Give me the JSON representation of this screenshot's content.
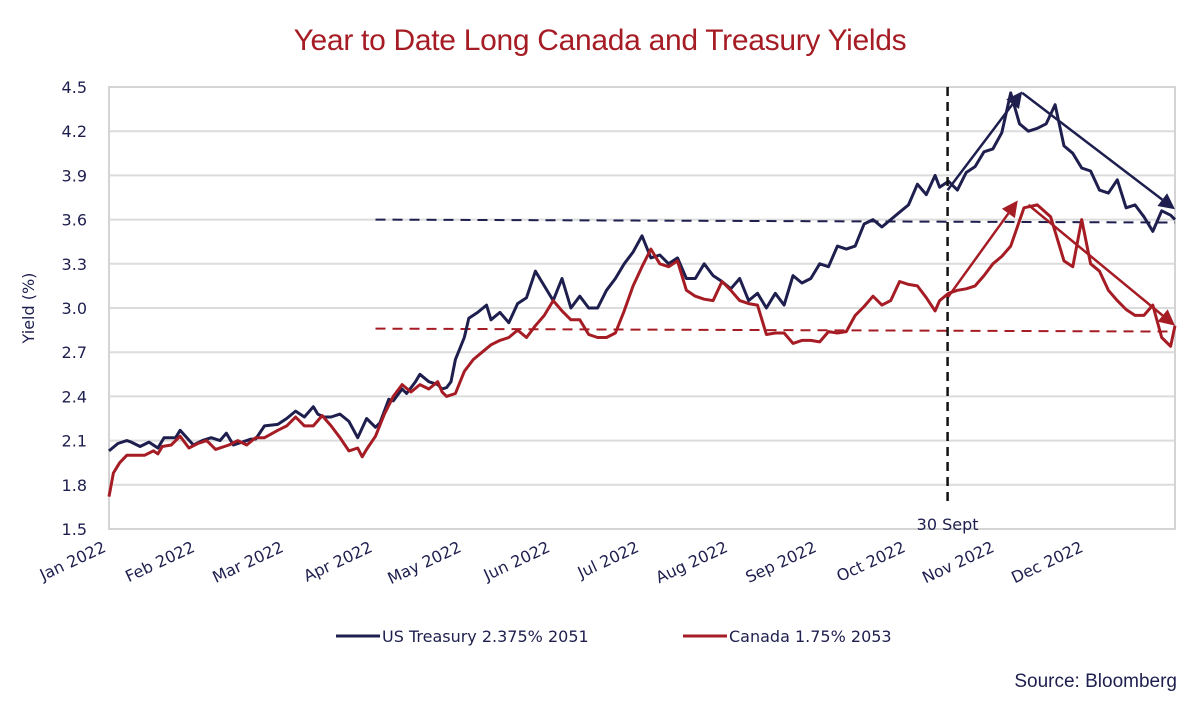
{
  "chart_data": {
    "type": "line",
    "title": "Year to Date Long Canada and Treasury Yields",
    "xlabel": "",
    "ylabel": "Yield (%)",
    "ylim": [
      1.5,
      4.5
    ],
    "yticks": [
      "1.5",
      "1.8",
      "2.1",
      "2.4",
      "2.7",
      "3.0",
      "3.3",
      "3.6",
      "3.9",
      "4.2",
      "4.5"
    ],
    "yticks_values": [
      1.5,
      1.8,
      2.1,
      2.4,
      2.7,
      3.0,
      3.3,
      3.6,
      3.9,
      4.2,
      4.5
    ],
    "x_unit": "months since Jan 2022",
    "xlim": [
      0,
      12
    ],
    "categories": [
      "Jan 2022",
      "Feb 2022",
      "Mar 2022",
      "Apr 2022",
      "May 2022",
      "Jun 2022",
      "Jul 2022",
      "Aug 2022",
      "Sep 2022",
      "Oct 2022",
      "Nov 2022",
      "Dec 2022"
    ],
    "grid": true,
    "legend_position": "bottom",
    "series": [
      {
        "name": "US Treasury 2.375% 2051",
        "color": "#1e1f4e",
        "x": [
          0,
          0.1,
          0.2,
          0.25,
          0.35,
          0.45,
          0.55,
          0.62,
          0.68,
          0.75,
          0.8,
          0.95,
          1.05,
          1.15,
          1.25,
          1.32,
          1.4,
          1.5,
          1.6,
          1.65,
          1.75,
          1.9,
          2.0,
          2.1,
          2.2,
          2.3,
          2.35,
          2.42,
          2.5,
          2.6,
          2.7,
          2.8,
          2.9,
          3.0,
          3.05,
          3.15,
          3.2,
          3.3,
          3.35,
          3.45,
          3.5,
          3.6,
          3.7,
          3.75,
          3.8,
          3.85,
          3.9,
          4.0,
          4.05,
          4.15,
          4.25,
          4.3,
          4.4,
          4.5,
          4.6,
          4.7,
          4.8,
          4.9,
          5.0,
          5.1,
          5.2,
          5.3,
          5.4,
          5.5,
          5.6,
          5.7,
          5.8,
          5.9,
          6.0,
          6.1,
          6.2,
          6.3,
          6.4,
          6.5,
          6.6,
          6.7,
          6.8,
          6.9,
          7.0,
          7.1,
          7.2,
          7.3,
          7.4,
          7.5,
          7.6,
          7.7,
          7.8,
          7.9,
          8.0,
          8.1,
          8.2,
          8.3,
          8.4,
          8.5,
          8.6,
          8.7,
          8.8,
          8.9,
          9.0,
          9.1,
          9.2,
          9.3,
          9.35,
          9.45,
          9.55,
          9.65,
          9.75,
          9.85,
          9.95,
          10.05,
          10.15,
          10.25,
          10.35,
          10.45,
          10.55,
          10.65,
          10.75,
          10.85,
          10.95,
          11.05,
          11.15,
          11.25,
          11.35,
          11.45,
          11.55,
          11.65,
          11.75,
          11.85,
          11.95,
          12.0
        ],
        "values": [
          2.03,
          2.08,
          2.1,
          2.09,
          2.06,
          2.09,
          2.05,
          2.12,
          2.12,
          2.12,
          2.17,
          2.07,
          2.1,
          2.12,
          2.1,
          2.15,
          2.07,
          2.09,
          2.11,
          2.11,
          2.2,
          2.21,
          2.25,
          2.3,
          2.26,
          2.33,
          2.28,
          2.26,
          2.26,
          2.28,
          2.23,
          2.12,
          2.25,
          2.19,
          2.22,
          2.38,
          2.37,
          2.45,
          2.42,
          2.5,
          2.55,
          2.5,
          2.48,
          2.45,
          2.46,
          2.5,
          2.65,
          2.8,
          2.93,
          2.97,
          3.02,
          2.92,
          2.97,
          2.9,
          3.03,
          3.07,
          3.25,
          3.15,
          3.05,
          3.2,
          3.0,
          3.08,
          3.0,
          3.0,
          3.12,
          3.2,
          3.3,
          3.38,
          3.49,
          3.34,
          3.36,
          3.3,
          3.34,
          3.2,
          3.2,
          3.3,
          3.22,
          3.18,
          3.13,
          3.2,
          3.05,
          3.1,
          3.0,
          3.1,
          3.02,
          3.22,
          3.17,
          3.2,
          3.3,
          3.28,
          3.42,
          3.4,
          3.42,
          3.57,
          3.6,
          3.55,
          3.6,
          3.65,
          3.7,
          3.84,
          3.77,
          3.9,
          3.82,
          3.86,
          3.8,
          3.92,
          3.96,
          4.06,
          4.08,
          4.19,
          4.46,
          4.25,
          4.2,
          4.22,
          4.25,
          4.38,
          4.1,
          4.05,
          3.95,
          3.93,
          3.8,
          3.78,
          3.87,
          3.68,
          3.7,
          3.62,
          3.52,
          3.66,
          3.63,
          3.6
        ]
      },
      {
        "name": "Canada 1.75% 2053",
        "color": "#a61c24",
        "x": [
          0,
          0.05,
          0.12,
          0.2,
          0.3,
          0.4,
          0.5,
          0.55,
          0.6,
          0.7,
          0.8,
          0.9,
          1.0,
          1.1,
          1.2,
          1.35,
          1.45,
          1.55,
          1.65,
          1.75,
          1.9,
          2.0,
          2.1,
          2.2,
          2.3,
          2.4,
          2.5,
          2.6,
          2.7,
          2.8,
          2.85,
          2.9,
          3.0,
          3.1,
          3.2,
          3.3,
          3.4,
          3.5,
          3.6,
          3.7,
          3.75,
          3.8,
          3.9,
          4.0,
          4.1,
          4.2,
          4.3,
          4.4,
          4.5,
          4.6,
          4.7,
          4.8,
          4.9,
          5.0,
          5.1,
          5.2,
          5.3,
          5.4,
          5.5,
          5.6,
          5.7,
          5.8,
          5.9,
          6.0,
          6.1,
          6.2,
          6.3,
          6.4,
          6.5,
          6.6,
          6.7,
          6.8,
          6.9,
          7.0,
          7.1,
          7.2,
          7.3,
          7.4,
          7.5,
          7.6,
          7.7,
          7.8,
          7.9,
          8.0,
          8.1,
          8.2,
          8.3,
          8.4,
          8.5,
          8.6,
          8.7,
          8.8,
          8.9,
          9.0,
          9.1,
          9.2,
          9.3,
          9.35,
          9.45,
          9.55,
          9.65,
          9.75,
          9.85,
          9.95,
          10.05,
          10.15,
          10.3,
          10.45,
          10.6,
          10.75,
          10.85,
          10.95,
          11.05,
          11.15,
          11.25,
          11.35,
          11.45,
          11.55,
          11.65,
          11.75,
          11.85,
          11.95,
          12.0
        ],
        "values": [
          1.72,
          1.88,
          1.95,
          2.0,
          2.0,
          2.0,
          2.03,
          2.01,
          2.06,
          2.07,
          2.13,
          2.05,
          2.08,
          2.1,
          2.04,
          2.07,
          2.1,
          2.07,
          2.12,
          2.12,
          2.17,
          2.2,
          2.26,
          2.2,
          2.2,
          2.27,
          2.2,
          2.12,
          2.03,
          2.05,
          1.99,
          2.04,
          2.13,
          2.28,
          2.4,
          2.48,
          2.43,
          2.48,
          2.45,
          2.5,
          2.43,
          2.4,
          2.42,
          2.57,
          2.65,
          2.7,
          2.75,
          2.78,
          2.8,
          2.85,
          2.8,
          2.88,
          2.95,
          3.05,
          2.98,
          2.92,
          2.92,
          2.82,
          2.8,
          2.8,
          2.83,
          2.98,
          3.15,
          3.28,
          3.4,
          3.3,
          3.28,
          3.32,
          3.12,
          3.08,
          3.06,
          3.05,
          3.18,
          3.12,
          3.05,
          3.03,
          3.02,
          2.82,
          2.83,
          2.83,
          2.76,
          2.78,
          2.78,
          2.77,
          2.84,
          2.83,
          2.84,
          2.95,
          3.01,
          3.08,
          3.02,
          3.05,
          3.18,
          3.16,
          3.15,
          3.07,
          2.98,
          3.05,
          3.1,
          3.12,
          3.13,
          3.15,
          3.22,
          3.3,
          3.35,
          3.42,
          3.68,
          3.7,
          3.62,
          3.32,
          3.28,
          3.6,
          3.3,
          3.25,
          3.12,
          3.05,
          2.99,
          2.95,
          2.95,
          3.02,
          2.8,
          2.74,
          2.88
        ]
      }
    ],
    "reference_lines": [
      {
        "name": "US Treasury reference",
        "color": "#1e1f4e",
        "style": "dashed",
        "x_start": 3.0,
        "x_end": 12.0,
        "y_start": 3.6,
        "y_end": 3.58
      },
      {
        "name": "Canada reference",
        "color": "#a61c24",
        "style": "dashed",
        "x_start": 3.0,
        "x_end": 12.0,
        "y_start": 2.86,
        "y_end": 2.84
      }
    ],
    "trend_arrows": [
      {
        "color": "#1e1f4e",
        "x1": 9.44,
        "y1": 3.8,
        "x2": 10.28,
        "y2": 4.47
      },
      {
        "color": "#1e1f4e",
        "x1": 10.28,
        "y1": 4.46,
        "x2": 12.0,
        "y2": 3.67
      },
      {
        "color": "#a61c24",
        "x1": 9.44,
        "y1": 3.07,
        "x2": 10.23,
        "y2": 3.73
      },
      {
        "color": "#a61c24",
        "x1": 10.35,
        "y1": 3.7,
        "x2": 12.0,
        "y2": 2.88
      }
    ],
    "vertical_marker": {
      "x": 9.44,
      "label": "30 Sept",
      "y_from": 4.5,
      "y_to": 1.65
    }
  },
  "source": "Source: Bloomberg"
}
